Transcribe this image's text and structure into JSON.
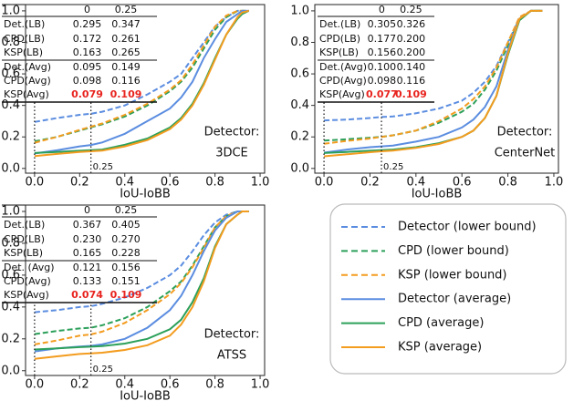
{
  "chart_data": [
    {
      "type": "line",
      "x": [
        0,
        0.1,
        0.2,
        0.25,
        0.3,
        0.4,
        0.5,
        0.6,
        0.65,
        0.7,
        0.75,
        0.8,
        0.85,
        0.9,
        0.92,
        0.95
      ],
      "series": [
        {
          "name": "Detector (lower bound)",
          "color": "#5b8de0",
          "dashed": true,
          "values": [
            0.295,
            0.32,
            0.34,
            0.347,
            0.36,
            0.4,
            0.47,
            0.55,
            0.6,
            0.7,
            0.8,
            0.9,
            0.96,
            1.0,
            1.0,
            1.0
          ]
        },
        {
          "name": "CPD (lower bound)",
          "color": "#2ca05a",
          "dashed": true,
          "values": [
            0.172,
            0.2,
            0.24,
            0.261,
            0.28,
            0.33,
            0.4,
            0.49,
            0.55,
            0.64,
            0.76,
            0.88,
            0.96,
            1.0,
            1.0,
            1.0
          ]
        },
        {
          "name": "KSP (lower bound)",
          "color": "#f39c1f",
          "dashed": true,
          "values": [
            0.163,
            0.2,
            0.245,
            0.265,
            0.285,
            0.34,
            0.41,
            0.5,
            0.56,
            0.66,
            0.78,
            0.9,
            0.97,
            1.0,
            1.0,
            1.0
          ]
        },
        {
          "name": "Detector (average)",
          "color": "#5b8de0",
          "dashed": false,
          "values": [
            0.095,
            0.115,
            0.14,
            0.149,
            0.165,
            0.22,
            0.3,
            0.38,
            0.45,
            0.55,
            0.7,
            0.82,
            0.93,
            0.98,
            1.0,
            1.0
          ]
        },
        {
          "name": "CPD (average)",
          "color": "#2ca05a",
          "dashed": false,
          "values": [
            0.098,
            0.105,
            0.112,
            0.116,
            0.12,
            0.15,
            0.19,
            0.26,
            0.32,
            0.41,
            0.54,
            0.7,
            0.85,
            0.95,
            0.98,
            1.0
          ]
        },
        {
          "name": "KSP (average)",
          "color": "#f39c1f",
          "dashed": false,
          "values": [
            0.079,
            0.092,
            0.104,
            0.109,
            0.113,
            0.14,
            0.18,
            0.25,
            0.31,
            0.4,
            0.53,
            0.69,
            0.85,
            0.96,
            0.99,
            1.0
          ]
        }
      ],
      "xlim": [
        -0.04,
        1.02
      ],
      "ylim": [
        -0.03,
        1.04
      ],
      "xticks": [
        {
          "value": 0,
          "label": "0.0"
        },
        0.2,
        0.4,
        0.6,
        0.8,
        {
          "value": 1,
          "label": "1.0"
        }
      ],
      "yticks": [
        {
          "value": 0,
          "label": "0.0"
        },
        0.2,
        0.4,
        0.6,
        0.8,
        {
          "value": 1,
          "label": "1.0"
        }
      ],
      "xlabel": "IoU-IoBB",
      "annotations": [
        "Detector:",
        "3DCE"
      ],
      "marker_x": [
        0,
        0.25
      ],
      "marker_label": "0.25",
      "table": {
        "header": [
          "0",
          "0.25"
        ],
        "highlight_row": 5,
        "highlight_color": "#e8231e",
        "rows": [
          {
            "label": "Det.(LB)",
            "cells": [
              "0.295",
              "0.347"
            ]
          },
          {
            "label": "CPD(LB)",
            "cells": [
              "0.172",
              "0.261"
            ]
          },
          {
            "label": "KSP(LB)",
            "cells": [
              "0.163",
              "0.265"
            ]
          },
          {
            "label": "Det.(Avg)",
            "cells": [
              "0.095",
              "0.149"
            ]
          },
          {
            "label": "CPD(Avg)",
            "cells": [
              "0.098",
              "0.116"
            ]
          },
          {
            "label": "KSP(Avg)",
            "cells": [
              "0.079",
              "0.109"
            ]
          }
        ]
      }
    },
    {
      "type": "line",
      "x": [
        0,
        0.1,
        0.2,
        0.25,
        0.3,
        0.4,
        0.5,
        0.6,
        0.65,
        0.7,
        0.75,
        0.8,
        0.85,
        0.9,
        0.92,
        0.95
      ],
      "series": [
        {
          "values": [
            0.305,
            0.31,
            0.32,
            0.326,
            0.33,
            0.35,
            0.38,
            0.43,
            0.48,
            0.55,
            0.65,
            0.8,
            0.95,
            1.0,
            1.0,
            1.0
          ]
        },
        {
          "values": [
            0.177,
            0.185,
            0.195,
            0.2,
            0.21,
            0.24,
            0.29,
            0.36,
            0.41,
            0.5,
            0.62,
            0.78,
            0.95,
            1.0,
            1.0,
            1.0
          ]
        },
        {
          "values": [
            0.156,
            0.175,
            0.19,
            0.2,
            0.21,
            0.24,
            0.3,
            0.38,
            0.44,
            0.52,
            0.64,
            0.8,
            0.96,
            1.0,
            1.0,
            1.0
          ]
        },
        {
          "values": [
            0.1,
            0.12,
            0.135,
            0.14,
            0.145,
            0.17,
            0.2,
            0.26,
            0.31,
            0.39,
            0.52,
            0.75,
            0.95,
            1.0,
            1.0,
            1.0
          ]
        },
        {
          "values": [
            0.098,
            0.105,
            0.112,
            0.116,
            0.12,
            0.135,
            0.16,
            0.2,
            0.24,
            0.32,
            0.46,
            0.72,
            0.94,
            1.0,
            1.0,
            1.0
          ]
        },
        {
          "values": [
            0.077,
            0.09,
            0.103,
            0.109,
            0.113,
            0.13,
            0.155,
            0.2,
            0.24,
            0.32,
            0.46,
            0.73,
            0.95,
            1.0,
            1.0,
            1.0
          ]
        }
      ],
      "xlim": [
        -0.04,
        1.02
      ],
      "ylim": [
        -0.03,
        1.04
      ],
      "xticks": [
        {
          "value": 0,
          "label": "0.0"
        },
        0.2,
        0.4,
        0.6,
        0.8,
        {
          "value": 1,
          "label": "1.0"
        }
      ],
      "yticks": [
        {
          "value": 0,
          "label": "0.0"
        },
        0.2,
        0.4,
        0.6,
        0.8,
        {
          "value": 1,
          "label": "1.0"
        }
      ],
      "xlabel": "IoU-IoBB",
      "annotations": [
        "Detector:",
        "CenterNet"
      ],
      "marker_x": [
        0,
        0.25
      ],
      "marker_label": "0.25",
      "table": {
        "header": [
          "0",
          "0.25"
        ],
        "highlight_row": 5,
        "highlight_color": "#e8231e",
        "rows": [
          {
            "label": "Det.(LB)",
            "cells": [
              "0.305",
              "0.326"
            ]
          },
          {
            "label": "CPD(LB)",
            "cells": [
              "0.177",
              "0.200"
            ]
          },
          {
            "label": "KSP(LB)",
            "cells": [
              "0.156",
              "0.200"
            ]
          },
          {
            "label": "Det.(Avg)",
            "cells": [
              "0.100",
              "0.140"
            ]
          },
          {
            "label": "CPD(Avg)",
            "cells": [
              "0.098",
              "0.116"
            ]
          },
          {
            "label": "KSP(Avg)",
            "cells": [
              "0.077",
              "0.109"
            ]
          }
        ]
      }
    },
    {
      "type": "line",
      "x": [
        0,
        0.1,
        0.2,
        0.25,
        0.3,
        0.4,
        0.5,
        0.6,
        0.65,
        0.7,
        0.75,
        0.8,
        0.85,
        0.9,
        0.92,
        0.95
      ],
      "series": [
        {
          "values": [
            0.367,
            0.38,
            0.4,
            0.405,
            0.42,
            0.46,
            0.52,
            0.6,
            0.66,
            0.75,
            0.85,
            0.93,
            0.98,
            1.0,
            1.0,
            1.0
          ]
        },
        {
          "values": [
            0.23,
            0.25,
            0.265,
            0.27,
            0.285,
            0.33,
            0.4,
            0.5,
            0.56,
            0.66,
            0.78,
            0.9,
            0.97,
            1.0,
            1.0,
            1.0
          ]
        },
        {
          "values": [
            0.165,
            0.19,
            0.22,
            0.228,
            0.245,
            0.3,
            0.38,
            0.48,
            0.55,
            0.65,
            0.77,
            0.9,
            0.97,
            1.0,
            1.0,
            1.0
          ]
        },
        {
          "values": [
            0.121,
            0.14,
            0.152,
            0.156,
            0.165,
            0.2,
            0.27,
            0.38,
            0.47,
            0.6,
            0.75,
            0.88,
            0.96,
            1.0,
            1.0,
            1.0
          ]
        },
        {
          "values": [
            0.133,
            0.14,
            0.148,
            0.151,
            0.155,
            0.17,
            0.2,
            0.26,
            0.32,
            0.43,
            0.58,
            0.78,
            0.92,
            0.98,
            1.0,
            1.0
          ]
        },
        {
          "values": [
            0.074,
            0.09,
            0.105,
            0.109,
            0.113,
            0.13,
            0.16,
            0.22,
            0.29,
            0.4,
            0.56,
            0.77,
            0.92,
            0.98,
            1.0,
            1.0
          ]
        }
      ],
      "xlim": [
        -0.04,
        1.02
      ],
      "ylim": [
        -0.03,
        1.04
      ],
      "xticks": [
        {
          "value": 0,
          "label": "0.0"
        },
        0.2,
        0.4,
        0.6,
        0.8,
        {
          "value": 1,
          "label": "1.0"
        }
      ],
      "yticks": [
        {
          "value": 0,
          "label": "0.0"
        },
        0.2,
        0.4,
        0.6,
        0.8,
        {
          "value": 1,
          "label": "1.0"
        }
      ],
      "xlabel": "IoU-IoBB",
      "annotations": [
        "Detector:",
        "ATSS"
      ],
      "marker_x": [
        0,
        0.25
      ],
      "marker_label": "0.25",
      "table": {
        "header": [
          "0",
          "0.25"
        ],
        "highlight_row": 5,
        "highlight_color": "#e8231e",
        "rows": [
          {
            "label": "Det.(LB)",
            "cells": [
              "0.367",
              "0.405"
            ]
          },
          {
            "label": "CPD(LB)",
            "cells": [
              "0.230",
              "0.270"
            ]
          },
          {
            "label": "KSP(LB)",
            "cells": [
              "0.165",
              "0.228"
            ]
          },
          {
            "label": "Det. (Avg)",
            "cells": [
              "0.121",
              "0.156"
            ]
          },
          {
            "label": "CPD(Avg)",
            "cells": [
              "0.133",
              "0.151"
            ]
          },
          {
            "label": "KSP(Avg)",
            "cells": [
              "0.074",
              "0.109"
            ]
          }
        ]
      }
    }
  ]
}
